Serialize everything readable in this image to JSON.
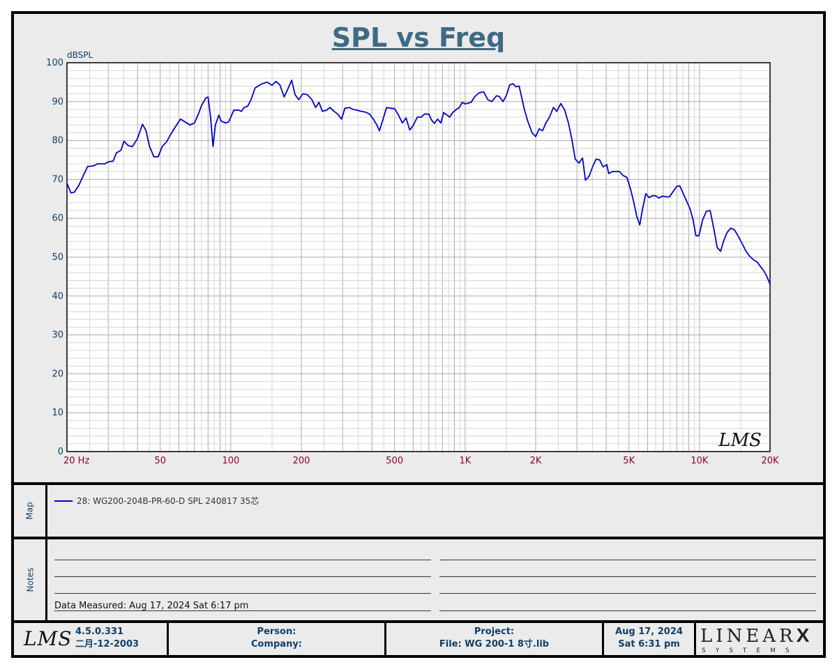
{
  "chart_data": {
    "type": "line",
    "title": "SPL vs Freq",
    "ylabel": "dBSPL",
    "xscale": "log",
    "xlim": [
      20,
      20000
    ],
    "ylim": [
      0,
      100
    ],
    "y_ticks": [
      0,
      10,
      20,
      30,
      40,
      50,
      60,
      70,
      80,
      90,
      100
    ],
    "x_ticks": [
      {
        "value": 20,
        "label": "20  Hz"
      },
      {
        "value": 50,
        "label": "50"
      },
      {
        "value": 100,
        "label": "100"
      },
      {
        "value": 200,
        "label": "200"
      },
      {
        "value": 500,
        "label": "500"
      },
      {
        "value": 1000,
        "label": "1K"
      },
      {
        "value": 2000,
        "label": "2K"
      },
      {
        "value": 5000,
        "label": "5K"
      },
      {
        "value": 10000,
        "label": "10K"
      },
      {
        "value": 20000,
        "label": "20K"
      }
    ],
    "grid": true,
    "watermark": "LMS",
    "series": [
      {
        "name": "28: WG200-204B-PR-60-D SPL 240817 35芯",
        "color": "#0000cc",
        "points": [
          [
            20,
            69
          ],
          [
            20.8,
            66.5
          ],
          [
            21.5,
            66.7
          ],
          [
            22.5,
            68.5
          ],
          [
            23.5,
            71
          ],
          [
            24.5,
            73.3
          ],
          [
            26,
            73.5
          ],
          [
            27,
            74
          ],
          [
            29,
            74
          ],
          [
            30,
            74.5
          ],
          [
            31.5,
            74.7
          ],
          [
            32.5,
            76.8
          ],
          [
            34,
            77.5
          ],
          [
            35,
            79.8
          ],
          [
            36.5,
            78.7
          ],
          [
            38,
            78.4
          ],
          [
            40,
            80.5
          ],
          [
            42,
            84.2
          ],
          [
            43.5,
            82.5
          ],
          [
            45,
            78.5
          ],
          [
            47,
            75.8
          ],
          [
            49,
            75.8
          ],
          [
            51,
            78.5
          ],
          [
            53,
            79.5
          ],
          [
            56,
            82
          ],
          [
            58,
            83.5
          ],
          [
            61,
            85.5
          ],
          [
            63,
            85
          ],
          [
            67,
            84
          ],
          [
            70,
            84.5
          ],
          [
            73,
            87
          ],
          [
            75,
            89
          ],
          [
            78,
            90.8
          ],
          [
            80,
            91.2
          ],
          [
            82,
            86
          ],
          [
            84,
            78.5
          ],
          [
            86,
            84
          ],
          [
            89,
            86.5
          ],
          [
            91,
            85
          ],
          [
            95,
            84.5
          ],
          [
            98,
            84.8
          ],
          [
            100,
            86
          ],
          [
            103,
            87.8
          ],
          [
            108,
            87.8
          ],
          [
            111,
            87.5
          ],
          [
            114,
            88.5
          ],
          [
            118,
            88.8
          ],
          [
            122,
            90.5
          ],
          [
            127,
            93.5
          ],
          [
            135,
            94.5
          ],
          [
            143,
            95
          ],
          [
            150,
            94.2
          ],
          [
            156,
            95.2
          ],
          [
            162,
            94.3
          ],
          [
            169,
            91.2
          ],
          [
            176,
            93.5
          ],
          [
            182,
            95.5
          ],
          [
            188,
            91.8
          ],
          [
            195,
            90.5
          ],
          [
            203,
            92
          ],
          [
            212,
            91.8
          ],
          [
            222,
            90.5
          ],
          [
            230,
            88.5
          ],
          [
            238,
            89.8
          ],
          [
            246,
            87.5
          ],
          [
            256,
            87.8
          ],
          [
            265,
            88.5
          ],
          [
            276,
            87.5
          ],
          [
            286,
            86.8
          ],
          [
            297,
            85.5
          ],
          [
            307,
            88.3
          ],
          [
            320,
            88.5
          ],
          [
            333,
            88
          ],
          [
            346,
            87.8
          ],
          [
            360,
            87.5
          ],
          [
            376,
            87.3
          ],
          [
            391,
            86.8
          ],
          [
            406,
            85.5
          ],
          [
            420,
            84
          ],
          [
            431,
            82.5
          ],
          [
            445,
            85.2
          ],
          [
            462,
            88.5
          ],
          [
            480,
            88.3
          ],
          [
            500,
            88.2
          ],
          [
            520,
            86.5
          ],
          [
            540,
            84.5
          ],
          [
            560,
            85.8
          ],
          [
            580,
            82.7
          ],
          [
            600,
            83.8
          ],
          [
            625,
            86
          ],
          [
            650,
            86
          ],
          [
            670,
            86.8
          ],
          [
            700,
            86.8
          ],
          [
            720,
            85.2
          ],
          [
            740,
            84.4
          ],
          [
            763,
            85.5
          ],
          [
            788,
            84.5
          ],
          [
            810,
            87.2
          ],
          [
            838,
            86.5
          ],
          [
            860,
            86
          ],
          [
            885,
            87.2
          ],
          [
            918,
            88
          ],
          [
            945,
            88.5
          ],
          [
            972,
            89.8
          ],
          [
            1000,
            89.4
          ],
          [
            1030,
            89.6
          ],
          [
            1060,
            89.8
          ],
          [
            1100,
            91.3
          ],
          [
            1150,
            92.3
          ],
          [
            1200,
            92.5
          ],
          [
            1250,
            90.5
          ],
          [
            1300,
            90
          ],
          [
            1360,
            91.5
          ],
          [
            1400,
            91.3
          ],
          [
            1450,
            90
          ],
          [
            1500,
            91.6
          ],
          [
            1550,
            94.3
          ],
          [
            1600,
            94.6
          ],
          [
            1650,
            93.8
          ],
          [
            1700,
            94
          ],
          [
            1790,
            88
          ],
          [
            1850,
            85
          ],
          [
            1930,
            82
          ],
          [
            2000,
            81
          ],
          [
            2070,
            83
          ],
          [
            2140,
            82.5
          ],
          [
            2210,
            84.5
          ],
          [
            2290,
            86
          ],
          [
            2380,
            88.5
          ],
          [
            2460,
            87.5
          ],
          [
            2560,
            89.5
          ],
          [
            2660,
            87.8
          ],
          [
            2760,
            84.5
          ],
          [
            2850,
            80.5
          ],
          [
            2950,
            75.2
          ],
          [
            3060,
            74.2
          ],
          [
            3170,
            75.5
          ],
          [
            3260,
            69.8
          ],
          [
            3380,
            70.8
          ],
          [
            3500,
            73.3
          ],
          [
            3620,
            75.2
          ],
          [
            3750,
            75
          ],
          [
            3880,
            73.2
          ],
          [
            4020,
            73.8
          ],
          [
            4100,
            71.5
          ],
          [
            4250,
            72
          ],
          [
            4400,
            72
          ],
          [
            4560,
            72
          ],
          [
            4720,
            71
          ],
          [
            4900,
            70.5
          ],
          [
            5080,
            67.5
          ],
          [
            5250,
            64
          ],
          [
            5400,
            60.5
          ],
          [
            5560,
            58.3
          ],
          [
            5720,
            62.5
          ],
          [
            5900,
            66.3
          ],
          [
            6100,
            65.3
          ],
          [
            6300,
            65.8
          ],
          [
            6500,
            65.8
          ],
          [
            6700,
            65.2
          ],
          [
            6950,
            65.7
          ],
          [
            7200,
            65.5
          ],
          [
            7450,
            65.5
          ],
          [
            7700,
            66.8
          ],
          [
            8000,
            68.2
          ],
          [
            8250,
            68.3
          ],
          [
            8500,
            66.5
          ],
          [
            8800,
            64.5
          ],
          [
            9100,
            62.5
          ],
          [
            9400,
            59.5
          ],
          [
            9650,
            55.5
          ],
          [
            9950,
            55.5
          ],
          [
            10300,
            59.5
          ],
          [
            10700,
            61.8
          ],
          [
            11100,
            62
          ],
          [
            11500,
            57.5
          ],
          [
            11900,
            52.5
          ],
          [
            12300,
            51.5
          ],
          [
            12700,
            54.3
          ],
          [
            13100,
            56.3
          ],
          [
            13600,
            57.5
          ],
          [
            14100,
            57
          ],
          [
            14600,
            55.5
          ],
          [
            15200,
            53.5
          ],
          [
            15800,
            51.5
          ],
          [
            16400,
            50.2
          ],
          [
            17000,
            49.3
          ],
          [
            17600,
            48.8
          ],
          [
            18200,
            47.6
          ],
          [
            18800,
            46.5
          ],
          [
            19400,
            45
          ],
          [
            20000,
            43
          ]
        ]
      }
    ]
  },
  "panels": {
    "map_label": "Map",
    "notes_label": "Notes",
    "legend_text": "28: WG200-204B-PR-60-D SPL 240817 35芯",
    "data_measured": "Data Measured: Aug 17, 2024  Sat  6:17 pm"
  },
  "footer": {
    "logo": "LMS",
    "version": "4.5.0.331",
    "build_date": "二月-12-2003",
    "person_label": "Person:",
    "company_label": "Company:",
    "project_label": "Project:",
    "file_text": "File: WG 200-1 8寸.lib",
    "date": "Aug 17, 2024",
    "day_time": "Sat  6:31 pm",
    "brand_word": "LINEAR",
    "brand_x": "X",
    "brand_sub": "SYSTEMS"
  }
}
